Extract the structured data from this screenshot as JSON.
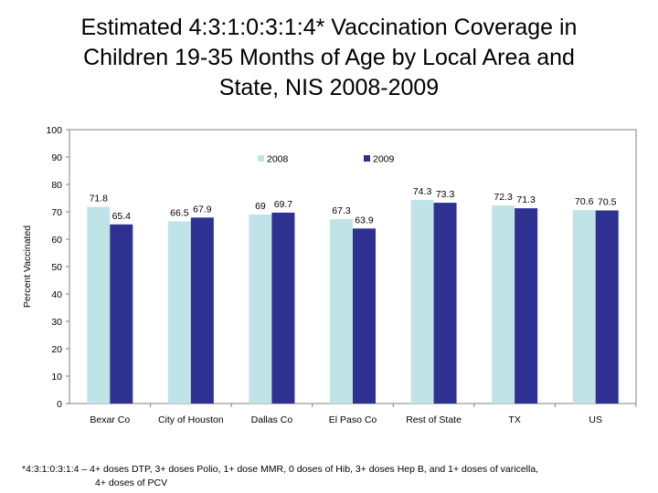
{
  "slide": {
    "title_lines": [
      "Estimated 4:3:1:0:3:1:4* Vaccination Coverage in",
      "Children 19-35 Months of Age by Local Area and",
      "State, NIS 2008-2009"
    ],
    "footnote_lines": [
      "*4:3:1:0:3:1:4 – 4+ doses DTP, 3+ doses Polio, 1+ dose MMR, 0 doses of Hib, 3+ doses Hep B, and 1+ doses of varicella,",
      "4+ doses of PCV"
    ]
  },
  "chart_data": {
    "type": "bar",
    "title": "Estimated 4:3:1:0:3:1:4* Vaccination Coverage in Children 19-35 Months of Age by Local Area and State, NIS 2008-2009",
    "xlabel": "",
    "ylabel": "Percent Vaccinated",
    "ylim": [
      0,
      100
    ],
    "yticks": [
      0,
      10,
      20,
      30,
      40,
      50,
      60,
      70,
      80,
      90,
      100
    ],
    "grid": false,
    "legend_position": "top-center",
    "categories": [
      "Bexar Co",
      "City of Houston",
      "Dallas Co",
      "El Paso Co",
      "Rest of State",
      "TX",
      "US"
    ],
    "series": [
      {
        "name": "2008",
        "color": "#bfe3e6",
        "values": [
          71.8,
          66.5,
          69,
          67.3,
          74.3,
          72.3,
          70.6
        ],
        "labels": [
          "71.8",
          "66.5",
          "69",
          "67.3",
          "74.3",
          "72.3",
          "70.6"
        ]
      },
      {
        "name": "2009",
        "color": "#2e3192",
        "values": [
          65.4,
          67.9,
          69.7,
          63.9,
          73.3,
          71.3,
          70.5
        ],
        "labels": [
          "65.4",
          "67.9",
          "69.7",
          "63.9",
          "73.3",
          "71.3",
          "70.5"
        ]
      }
    ]
  }
}
